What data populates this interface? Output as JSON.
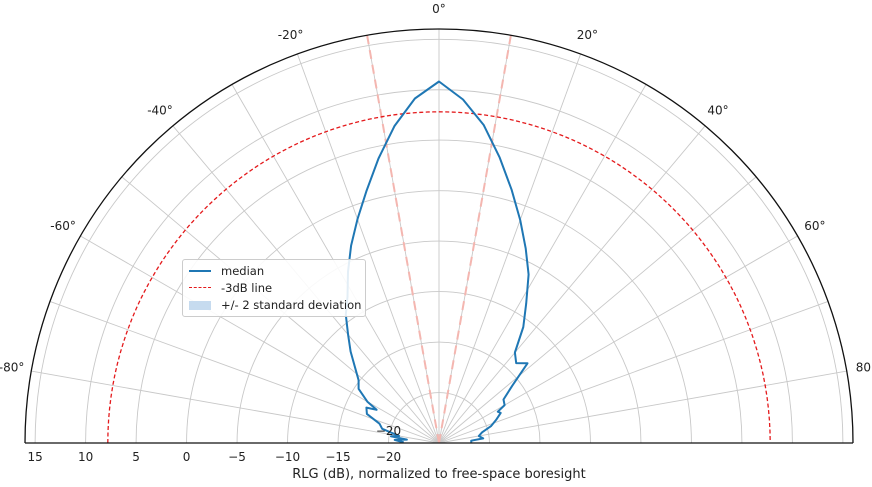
{
  "chart_data": {
    "type": "polar-line",
    "xlabel": "RLG (dB), normalized to free-space boresight",
    "angle_ticks": [
      "-80°",
      "-60°",
      "-40°",
      "-20°",
      "0°",
      "20°",
      "40°",
      "60°",
      "80°"
    ],
    "angle_tick_values": [
      -80,
      -60,
      -40,
      -20,
      0,
      20,
      40,
      60,
      80
    ],
    "radial_tick_labels_left": [
      "15",
      "10",
      "5",
      "0",
      "−5",
      "−10",
      "−15",
      "−20"
    ],
    "radial_tick_labels_center": [
      "−20"
    ],
    "radial_tick_values": [
      15,
      10,
      5,
      0,
      -5,
      -10,
      -15,
      -20
    ],
    "rlim_db": [
      -25,
      16
    ],
    "angle_range_deg": [
      -90,
      90
    ],
    "grid": true,
    "legend_position": "center-left",
    "legend": [
      "median",
      "-3dB line",
      "+/- 2 standard deviation"
    ],
    "series": [
      {
        "name": "median",
        "color": "#1f77b4",
        "style": "solid",
        "angles_deg": [
          -89,
          -86,
          -84,
          -82,
          -80,
          -76,
          -72,
          -68,
          -64,
          -62,
          -60,
          -56,
          -52,
          -48,
          -44,
          -40,
          -36,
          -32,
          -28,
          -24,
          -20,
          -16,
          -12,
          -8,
          -4,
          0,
          4,
          8,
          12,
          16,
          20,
          24,
          28,
          32,
          36,
          40,
          44,
          48,
          52,
          56,
          60,
          62,
          64,
          68,
          72,
          76,
          80,
          84,
          86,
          89
        ],
        "values_db": [
          -21.5,
          -20.6,
          -21.8,
          -20.2,
          -21.0,
          -19.2,
          -18.8,
          -17.3,
          -17.0,
          -18.0,
          -16.8,
          -15.4,
          -14.9,
          -13.8,
          -12.4,
          -11.0,
          -9.3,
          -7.9,
          -5.8,
          -3.6,
          -1.4,
          1.0,
          3.8,
          6.7,
          9.2,
          10.8,
          9.1,
          6.8,
          3.9,
          1.1,
          -1.5,
          -3.9,
          -6.1,
          -8.7,
          -10.8,
          -13.3,
          -14.0,
          -13.2,
          -15.8,
          -17.3,
          -17.5,
          -18.4,
          -18.2,
          -18.9,
          -19.6,
          -20.6,
          -21.0,
          -20.6,
          -21.8,
          -21.8
        ]
      },
      {
        "name": "-3dB line",
        "color": "#e41a1c",
        "style": "dashed",
        "constant_db": 7.8
      }
    ],
    "reference_lines": {
      "color": "#f4b6b0",
      "style": "dashed",
      "angles_deg": [
        -10,
        10
      ]
    }
  }
}
